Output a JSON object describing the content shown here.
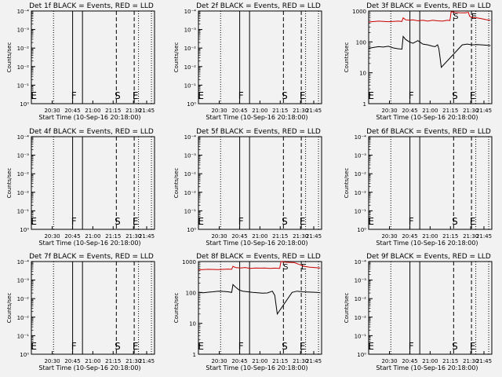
{
  "chart_data": [
    {
      "type": "line",
      "title": "Det 1f BLACK = Events, RED = LLD",
      "xlabel": "Start Time (10-Sep-16 20:18:00)",
      "ylabel": "Counts/sec",
      "yscale": "log",
      "ylim": [
        1,
        0.0001
      ],
      "ytick_labels": [
        "10⁻⁴",
        "10⁻³",
        "10⁻²",
        "10⁻²",
        "10⁻¹",
        "10⁰"
      ],
      "xtick_labels": [
        "20:30",
        "20:45",
        "21:00",
        "21:15",
        "21:30",
        "21:45"
      ],
      "markers": [
        "E",
        "F",
        "S",
        "E"
      ],
      "series": []
    },
    {
      "type": "line",
      "title": "Det 2f BLACK = Events, RED = LLD",
      "xlabel": "Start Time (10-Sep-16 20:18:00)",
      "ylabel": "Counts/sec",
      "yscale": "log",
      "ylim": [
        1,
        0.0001
      ],
      "ytick_labels": [
        "10⁻⁴",
        "10⁻³",
        "10⁻²",
        "10⁻²",
        "10⁻¹",
        "10⁰"
      ],
      "xtick_labels": [
        "20:30",
        "20:45",
        "21:00",
        "21:15",
        "21:30",
        "21:45"
      ],
      "markers": [
        "E",
        "F",
        "S",
        "E"
      ],
      "series": []
    },
    {
      "type": "line",
      "title": "Det 3f BLACK = Events, RED = LLD",
      "xlabel": "Start Time (10-Sep-16 20:18:00)",
      "ylabel": "Counts/sec",
      "yscale": "log",
      "ylim": [
        1,
        1000
      ],
      "ytick_labels": [
        "1",
        "10",
        "100",
        "1000"
      ],
      "xtick_labels": [
        "20:30",
        "20:45",
        "21:00",
        "21:15",
        "21:30",
        "21:45"
      ],
      "markers": [
        "E",
        "F",
        "S",
        "E"
      ],
      "series": [
        {
          "color": "#cc0000",
          "x": [
            0,
            8,
            16,
            24,
            27,
            28,
            30,
            33,
            36,
            40,
            44,
            48,
            52,
            56,
            60,
            64,
            66,
            67,
            70,
            74,
            78,
            81,
            82,
            84,
            88,
            92,
            96,
            99
          ],
          "y": [
            440,
            470,
            450,
            470,
            460,
            600,
            520,
            500,
            520,
            480,
            500,
            470,
            500,
            480,
            470,
            500,
            490,
            950,
            900,
            880,
            870,
            900,
            680,
            620,
            600,
            560,
            520,
            500
          ]
        },
        {
          "color": "#000000",
          "x": [
            0,
            4,
            8,
            12,
            16,
            20,
            24,
            27,
            28,
            30,
            33,
            36,
            40,
            44,
            48,
            52,
            54,
            56,
            57,
            58,
            59,
            76,
            80,
            84,
            88,
            92,
            96,
            99
          ],
          "y": [
            62,
            66,
            70,
            68,
            72,
            64,
            60,
            58,
            150,
            120,
            100,
            90,
            110,
            85,
            80,
            72,
            70,
            80,
            60,
            30,
            15,
            80,
            85,
            80,
            82,
            80,
            78,
            76
          ]
        }
      ]
    },
    {
      "type": "line",
      "title": "Det 4f BLACK = Events, RED = LLD",
      "xlabel": "Start Time (10-Sep-16 20:18:00)",
      "ylabel": "Counts/sec",
      "yscale": "log",
      "ylim": [
        1,
        0.0001
      ],
      "ytick_labels": [
        "10⁻⁴",
        "10⁻³",
        "10⁻²",
        "10⁻²",
        "10⁻¹",
        "10⁰"
      ],
      "xtick_labels": [
        "20:30",
        "20:45",
        "21:00",
        "21:15",
        "21:30",
        "21:45"
      ],
      "markers": [
        "E",
        "F",
        "S",
        "E"
      ],
      "series": []
    },
    {
      "type": "line",
      "title": "Det 5f BLACK = Events, RED = LLD",
      "xlabel": "Start Time (10-Sep-16 20:18:00)",
      "ylabel": "Counts/sec",
      "yscale": "log",
      "ylim": [
        1,
        0.0001
      ],
      "ytick_labels": [
        "10⁻⁴",
        "10⁻³",
        "10⁻²",
        "10⁻²",
        "10⁻¹",
        "10⁰"
      ],
      "xtick_labels": [
        "20:30",
        "20:45",
        "21:00",
        "21:15",
        "21:30",
        "21:45"
      ],
      "markers": [
        "E",
        "F",
        "S",
        "E"
      ],
      "series": []
    },
    {
      "type": "line",
      "title": "Det 6f BLACK = Events, RED = LLD",
      "xlabel": "Start Time (10-Sep-16 20:18:00)",
      "ylabel": "Counts/sec",
      "yscale": "log",
      "ylim": [
        1,
        0.0001
      ],
      "ytick_labels": [
        "10⁻⁴",
        "10⁻³",
        "10⁻²",
        "10⁻²",
        "10⁻¹",
        "10⁰"
      ],
      "xtick_labels": [
        "20:30",
        "20:45",
        "21:00",
        "21:15",
        "21:30",
        "21:45"
      ],
      "markers": [
        "E",
        "F",
        "S",
        "E"
      ],
      "series": []
    },
    {
      "type": "line",
      "title": "Det 7f BLACK = Events, RED = LLD",
      "xlabel": "Start Time (10-Sep-16 20:18:00)",
      "ylabel": "Counts/sec",
      "yscale": "log",
      "ylim": [
        1,
        0.0001
      ],
      "ytick_labels": [
        "10⁻⁴",
        "10⁻³",
        "10⁻²",
        "10⁻²",
        "10⁻¹",
        "10⁰"
      ],
      "xtick_labels": [
        "20:30",
        "20:45",
        "21:00",
        "21:15",
        "21:30",
        "21:45"
      ],
      "markers": [
        "E",
        "F",
        "S",
        "E"
      ],
      "series": []
    },
    {
      "type": "line",
      "title": "Det 8f BLACK = Events, RED = LLD",
      "xlabel": "Start Time (10-Sep-16 20:18:00)",
      "ylabel": "Counts/sec",
      "yscale": "log",
      "ylim": [
        1,
        1000
      ],
      "ytick_labels": [
        "1",
        "10",
        "100",
        "1000"
      ],
      "xtick_labels": [
        "20:30",
        "20:45",
        "21:00",
        "21:15",
        "21:30",
        "21:45"
      ],
      "markers": [
        "E",
        "F",
        "S",
        "E"
      ],
      "series": [
        {
          "color": "#cc0000",
          "x": [
            0,
            8,
            16,
            24,
            27,
            28,
            30,
            34,
            38,
            42,
            46,
            50,
            54,
            58,
            62,
            66,
            67,
            70,
            74,
            78,
            82,
            86,
            90,
            94,
            99
          ],
          "y": [
            540,
            560,
            550,
            570,
            560,
            700,
            640,
            620,
            640,
            600,
            620,
            610,
            620,
            600,
            610,
            600,
            1000,
            960,
            940,
            920,
            800,
            700,
            660,
            640,
            620
          ]
        },
        {
          "color": "#000000",
          "x": [
            0,
            4,
            8,
            12,
            16,
            20,
            24,
            27,
            28,
            30,
            33,
            36,
            40,
            44,
            48,
            52,
            56,
            60,
            62,
            63,
            64,
            76,
            80,
            84,
            88,
            92,
            96,
            99
          ],
          "y": [
            100,
            98,
            102,
            105,
            110,
            108,
            105,
            100,
            180,
            150,
            120,
            110,
            105,
            100,
            98,
            95,
            96,
            110,
            80,
            40,
            20,
            100,
            110,
            105,
            104,
            102,
            100,
            98
          ]
        }
      ]
    },
    {
      "type": "line",
      "title": "Det 9f BLACK = Events, RED = LLD",
      "xlabel": "Start Time (10-Sep-16 20:18:00)",
      "ylabel": "Counts/sec",
      "yscale": "log",
      "ylim": [
        1,
        0.0001
      ],
      "ytick_labels": [
        "10⁻⁴",
        "10⁻³",
        "10⁻²",
        "10⁻²",
        "10⁻¹",
        "10⁰"
      ],
      "xtick_labels": [
        "20:30",
        "20:45",
        "21:00",
        "21:15",
        "21:30",
        "21:45"
      ],
      "markers": [
        "E",
        "F",
        "S",
        "E"
      ],
      "series": []
    }
  ]
}
